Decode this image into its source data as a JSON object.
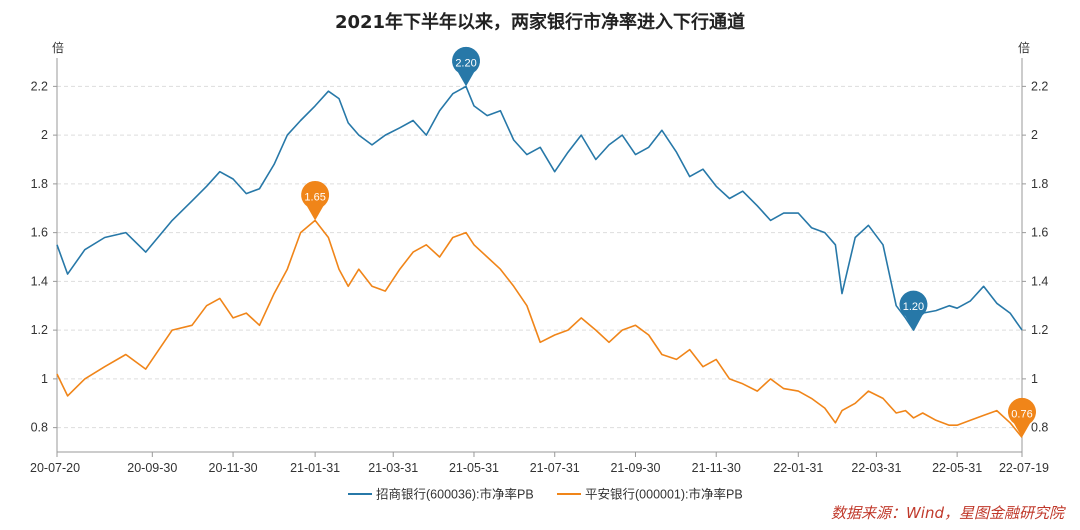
{
  "chart_data": {
    "type": "line",
    "title": "2021年下半年以来，两家银行市净率进入下行通道",
    "y_unit_left": "倍",
    "y_unit_right": "倍",
    "ylim": [
      0.7,
      2.3
    ],
    "yticks": [
      0.8,
      1,
      1.2,
      1.4,
      1.6,
      1.8,
      2,
      2.2
    ],
    "ytick_labels": [
      "0.8",
      "1",
      "1.2",
      "1.4",
      "1.6",
      "1.8",
      "2",
      "2.2"
    ],
    "x_tick_labels": [
      "20-07-20",
      "20-09-30",
      "20-11-30",
      "21-01-31",
      "21-03-31",
      "21-05-31",
      "21-07-31",
      "21-09-30",
      "21-11-30",
      "22-01-31",
      "22-03-31",
      "22-05-31",
      "22-07-19"
    ],
    "x_ticks": [
      "2020-07-20",
      "2020-09-30",
      "2020-11-30",
      "2021-01-31",
      "2021-03-31",
      "2021-05-31",
      "2021-07-31",
      "2021-09-30",
      "2021-11-30",
      "2022-01-31",
      "2022-03-31",
      "2022-05-31",
      "2022-07-19"
    ],
    "grid": true,
    "legend_position": "bottom",
    "series": [
      {
        "name": "招商银行(600036):市净率PB",
        "color": "#2778a8",
        "x": [
          "2020-07-20",
          "2020-07-28",
          "2020-08-10",
          "2020-08-25",
          "2020-09-10",
          "2020-09-25",
          "2020-10-15",
          "2020-10-30",
          "2020-11-10",
          "2020-11-20",
          "2020-11-30",
          "2020-12-10",
          "2020-12-20",
          "2020-12-31",
          "2021-01-10",
          "2021-01-20",
          "2021-01-31",
          "2021-02-10",
          "2021-02-18",
          "2021-02-25",
          "2021-03-05",
          "2021-03-15",
          "2021-03-25",
          "2021-04-05",
          "2021-04-15",
          "2021-04-25",
          "2021-05-05",
          "2021-05-15",
          "2021-05-25",
          "2021-05-31",
          "2021-06-10",
          "2021-06-20",
          "2021-06-30",
          "2021-07-10",
          "2021-07-20",
          "2021-07-31",
          "2021-08-10",
          "2021-08-20",
          "2021-08-31",
          "2021-09-10",
          "2021-09-20",
          "2021-09-30",
          "2021-10-10",
          "2021-10-20",
          "2021-10-31",
          "2021-11-10",
          "2021-11-20",
          "2021-11-30",
          "2021-12-10",
          "2021-12-20",
          "2021-12-31",
          "2022-01-10",
          "2022-01-20",
          "2022-01-31",
          "2022-02-10",
          "2022-02-20",
          "2022-02-28",
          "2022-03-05",
          "2022-03-15",
          "2022-03-25",
          "2022-04-05",
          "2022-04-15",
          "2022-04-22",
          "2022-04-28",
          "2022-05-05",
          "2022-05-15",
          "2022-05-25",
          "2022-05-31",
          "2022-06-10",
          "2022-06-20",
          "2022-06-30",
          "2022-07-10",
          "2022-07-19"
        ],
        "values": [
          1.55,
          1.43,
          1.53,
          1.58,
          1.6,
          1.52,
          1.65,
          1.73,
          1.79,
          1.85,
          1.82,
          1.76,
          1.78,
          1.88,
          2.0,
          2.06,
          2.12,
          2.18,
          2.15,
          2.05,
          2.0,
          1.96,
          2.0,
          2.03,
          2.06,
          2.0,
          2.1,
          2.17,
          2.2,
          2.12,
          2.08,
          2.1,
          1.98,
          1.92,
          1.95,
          1.85,
          1.93,
          2.0,
          1.9,
          1.96,
          2.0,
          1.92,
          1.95,
          2.02,
          1.93,
          1.83,
          1.86,
          1.79,
          1.74,
          1.77,
          1.71,
          1.65,
          1.68,
          1.68,
          1.62,
          1.6,
          1.55,
          1.35,
          1.58,
          1.63,
          1.55,
          1.3,
          1.25,
          1.2,
          1.27,
          1.28,
          1.3,
          1.29,
          1.32,
          1.38,
          1.31,
          1.27,
          1.2
        ]
      },
      {
        "name": "平安银行(000001):市净率PB",
        "color": "#f08519",
        "x": [
          "2020-07-20",
          "2020-07-28",
          "2020-08-10",
          "2020-08-25",
          "2020-09-10",
          "2020-09-25",
          "2020-10-15",
          "2020-10-30",
          "2020-11-10",
          "2020-11-20",
          "2020-11-30",
          "2020-12-10",
          "2020-12-20",
          "2020-12-31",
          "2021-01-10",
          "2021-01-20",
          "2021-01-31",
          "2021-02-10",
          "2021-02-18",
          "2021-02-25",
          "2021-03-05",
          "2021-03-15",
          "2021-03-25",
          "2021-04-05",
          "2021-04-15",
          "2021-04-25",
          "2021-05-05",
          "2021-05-15",
          "2021-05-25",
          "2021-05-31",
          "2021-06-10",
          "2021-06-20",
          "2021-06-30",
          "2021-07-10",
          "2021-07-20",
          "2021-07-31",
          "2021-08-10",
          "2021-08-20",
          "2021-08-31",
          "2021-09-10",
          "2021-09-20",
          "2021-09-30",
          "2021-10-10",
          "2021-10-20",
          "2021-10-31",
          "2021-11-10",
          "2021-11-20",
          "2021-11-30",
          "2021-12-10",
          "2021-12-20",
          "2021-12-31",
          "2022-01-10",
          "2022-01-20",
          "2022-01-31",
          "2022-02-10",
          "2022-02-20",
          "2022-02-28",
          "2022-03-05",
          "2022-03-15",
          "2022-03-25",
          "2022-04-05",
          "2022-04-15",
          "2022-04-22",
          "2022-04-28",
          "2022-05-05",
          "2022-05-15",
          "2022-05-25",
          "2022-05-31",
          "2022-06-10",
          "2022-06-20",
          "2022-06-30",
          "2022-07-10",
          "2022-07-19"
        ],
        "values": [
          1.02,
          0.93,
          1.0,
          1.05,
          1.1,
          1.04,
          1.2,
          1.22,
          1.3,
          1.33,
          1.25,
          1.27,
          1.22,
          1.35,
          1.45,
          1.6,
          1.65,
          1.58,
          1.45,
          1.38,
          1.45,
          1.38,
          1.36,
          1.45,
          1.52,
          1.55,
          1.5,
          1.58,
          1.6,
          1.55,
          1.5,
          1.45,
          1.38,
          1.3,
          1.15,
          1.18,
          1.2,
          1.25,
          1.2,
          1.15,
          1.2,
          1.22,
          1.18,
          1.1,
          1.08,
          1.12,
          1.05,
          1.08,
          1.0,
          0.98,
          0.95,
          1.0,
          0.96,
          0.95,
          0.92,
          0.88,
          0.82,
          0.87,
          0.9,
          0.95,
          0.92,
          0.86,
          0.87,
          0.84,
          0.86,
          0.83,
          0.81,
          0.81,
          0.83,
          0.85,
          0.87,
          0.82,
          0.76
        ]
      }
    ],
    "annotations": [
      {
        "series": 0,
        "x": "2021-05-25",
        "label": "2.20",
        "color": "#2778a8"
      },
      {
        "series": 0,
        "x": "2022-04-28",
        "label": "1.20",
        "color": "#2778a8"
      },
      {
        "series": 1,
        "x": "2021-01-31",
        "label": "1.65",
        "color": "#f08519"
      },
      {
        "series": 1,
        "x": "2022-07-19",
        "label": "0.76",
        "color": "#f08519"
      }
    ]
  },
  "source_note": "数据来源：Wind，星图金融研究院"
}
